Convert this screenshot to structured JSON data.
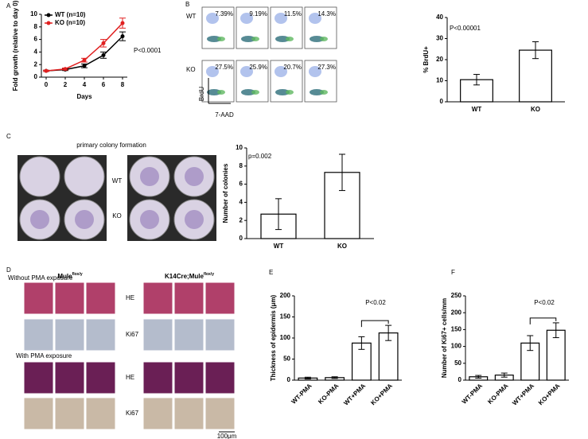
{
  "figure": {
    "panels": [
      "A",
      "B",
      "C",
      "D",
      "E",
      "F"
    ],
    "flow": {
      "row_labels": [
        "WT",
        "KO"
      ],
      "wt": [
        "7.39%",
        "9.19%",
        "11.5%",
        "14.3%"
      ],
      "ko": [
        "27.5%",
        "25.9%",
        "20.7%",
        "27.3%"
      ],
      "y_label": "BrdU",
      "x_label": "7-AAD"
    },
    "colony": {
      "title": "primary colony formation",
      "row_labels": [
        "WT",
        "KO"
      ]
    },
    "histology": {
      "left_title": "Mule",
      "left_sup": "flox/y",
      "right_title": "K14Cre;Mule",
      "right_sup": "flox/y",
      "without": "Without PMA exposure",
      "with": "With PMA exposure",
      "stains": [
        "HE",
        "Ki67",
        "HE",
        "Ki67"
      ],
      "scale": "100μm"
    }
  },
  "chart_data": [
    {
      "type": "line",
      "ylabel": "Fold growth (relative to day 0)",
      "xlabel": "Days",
      "annotation": "P<0.0001",
      "x": [
        0,
        2,
        4,
        6,
        8
      ],
      "xlim": [
        -0.5,
        8.5
      ],
      "xticks": [
        0,
        2,
        4,
        6,
        8
      ],
      "ylim": [
        0,
        10
      ],
      "yticks": [
        0,
        2,
        4,
        6,
        8,
        10
      ],
      "series": [
        {
          "name": "WT (n=10)",
          "color": "#000000",
          "values": [
            1,
            1.2,
            1.8,
            3.5,
            6.5
          ],
          "errors": [
            0.1,
            0.15,
            0.3,
            0.5,
            0.7
          ]
        },
        {
          "name": "KO (n=10)",
          "color": "#e02020",
          "values": [
            1,
            1.3,
            2.7,
            5.4,
            8.6
          ],
          "errors": [
            0.1,
            0.15,
            0.3,
            0.6,
            0.8
          ]
        }
      ]
    },
    {
      "type": "bar",
      "ylabel": "% BrdU+",
      "annotation": "P<0.00001",
      "categories": [
        "WT",
        "KO"
      ],
      "values": [
        10.5,
        24.5
      ],
      "errors": [
        2.5,
        4
      ],
      "color": "#ffffff",
      "ylim": [
        0,
        40
      ],
      "yticks": [
        0,
        10,
        20,
        30,
        40
      ]
    },
    {
      "type": "bar",
      "ylabel": "Number of colonies",
      "annotation": "p=0.002",
      "categories": [
        "WT",
        "KO"
      ],
      "values": [
        2.7,
        7.3
      ],
      "errors": [
        1.7,
        2
      ],
      "color": "#ffffff",
      "ylim": [
        0,
        10
      ],
      "yticks": [
        0,
        2,
        4,
        6,
        8,
        10
      ]
    },
    {
      "type": "bar",
      "ylabel": "Thickness of epidermis (μm)",
      "annotation": "P<0.02",
      "categories": [
        "WT-PMA",
        "KO-PMA",
        "WT+PMA",
        "KO+PMA"
      ],
      "values": [
        5,
        6,
        88,
        112
      ],
      "errors": [
        2,
        2,
        15,
        18
      ],
      "color": "#ffffff",
      "ylim": [
        0,
        200
      ],
      "yticks": [
        0,
        50,
        100,
        150,
        200
      ]
    },
    {
      "type": "bar",
      "ylabel": "Number of Ki67+ cells/mm",
      "annotation": "P<0.02",
      "categories": [
        "WT-PMA",
        "KO-PMA",
        "WT+PMA",
        "KO+PMA"
      ],
      "values": [
        10,
        15,
        110,
        148
      ],
      "errors": [
        4,
        6,
        22,
        22
      ],
      "color": "#ffffff",
      "ylim": [
        0,
        250
      ],
      "yticks": [
        0,
        50,
        100,
        150,
        200,
        250
      ]
    }
  ]
}
